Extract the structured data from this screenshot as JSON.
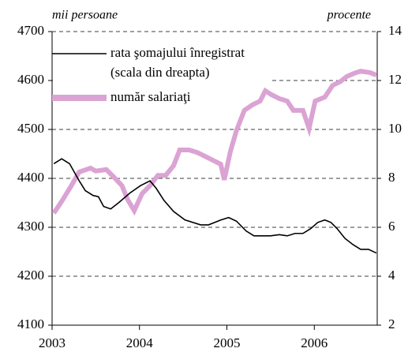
{
  "chart_data": {
    "type": "line",
    "y_label": "mii persoane",
    "y2_label": "procente",
    "xlim": [
      2003,
      2006.72
    ],
    "xticks": [
      2003,
      2004,
      2005,
      2006
    ],
    "ylim": [
      4100,
      4700
    ],
    "yticks": [
      4100,
      4200,
      4300,
      4400,
      4500,
      4600,
      4700
    ],
    "y2lim": [
      2,
      14
    ],
    "y2ticks": [
      2,
      4,
      6,
      8,
      10,
      12,
      14
    ],
    "grid": true,
    "series": [
      {
        "name": "rata şomajului înregistrat",
        "name_note": "(scala din dreapta)",
        "color": "#000000",
        "axis": "y2",
        "x": [
          2003.02,
          2003.11,
          2003.2,
          2003.31,
          2003.38,
          2003.47,
          2003.53,
          2003.59,
          2003.67,
          2003.76,
          2003.89,
          2004.01,
          2004.12,
          2004.19,
          2004.28,
          2004.39,
          2004.52,
          2004.7,
          2004.79,
          2004.93,
          2005.02,
          2005.11,
          2005.22,
          2005.31,
          2005.5,
          2005.6,
          2005.69,
          2005.78,
          2005.87,
          2005.96,
          2006.04,
          2006.12,
          2006.19,
          2006.26,
          2006.35,
          2006.44,
          2006.53,
          2006.62,
          2006.71
        ],
        "values": [
          8.6,
          8.8,
          8.6,
          7.9,
          7.5,
          7.3,
          7.25,
          6.85,
          6.75,
          7.0,
          7.4,
          7.7,
          7.9,
          7.6,
          7.1,
          6.65,
          6.3,
          6.1,
          6.1,
          6.3,
          6.4,
          6.25,
          5.85,
          5.65,
          5.65,
          5.7,
          5.65,
          5.75,
          5.75,
          5.95,
          6.2,
          6.3,
          6.2,
          5.95,
          5.55,
          5.3,
          5.1,
          5.1,
          4.95
        ]
      },
      {
        "name": "număr salariaţi",
        "color": "#dba3d3",
        "x": [
          2003.02,
          2003.11,
          2003.22,
          2003.31,
          2003.44,
          2003.5,
          2003.62,
          2003.71,
          2003.8,
          2003.86,
          2003.94,
          2004.03,
          2004.12,
          2004.21,
          2004.3,
          2004.39,
          2004.46,
          2004.57,
          2004.66,
          2004.75,
          2004.84,
          2004.93,
          2004.97,
          2005.04,
          2005.11,
          2005.2,
          2005.29,
          2005.38,
          2005.44,
          2005.51,
          2005.6,
          2005.69,
          2005.76,
          2005.87,
          2005.94,
          2006.01,
          2006.12,
          2006.21,
          2006.3,
          2006.37,
          2006.46,
          2006.53,
          2006.64,
          2006.71
        ],
        "values": [
          4329,
          4353,
          4385,
          4413,
          4421,
          4415,
          4418,
          4402,
          4385,
          4358,
          4334,
          4369,
          4385,
          4406,
          4406,
          4426,
          4458,
          4458,
          4453,
          4445,
          4437,
          4429,
          4397,
          4455,
          4498,
          4539,
          4550,
          4558,
          4579,
          4571,
          4563,
          4558,
          4539,
          4539,
          4502,
          4558,
          4566,
          4590,
          4598,
          4608,
          4615,
          4619,
          4616,
          4611
        ]
      }
    ]
  }
}
